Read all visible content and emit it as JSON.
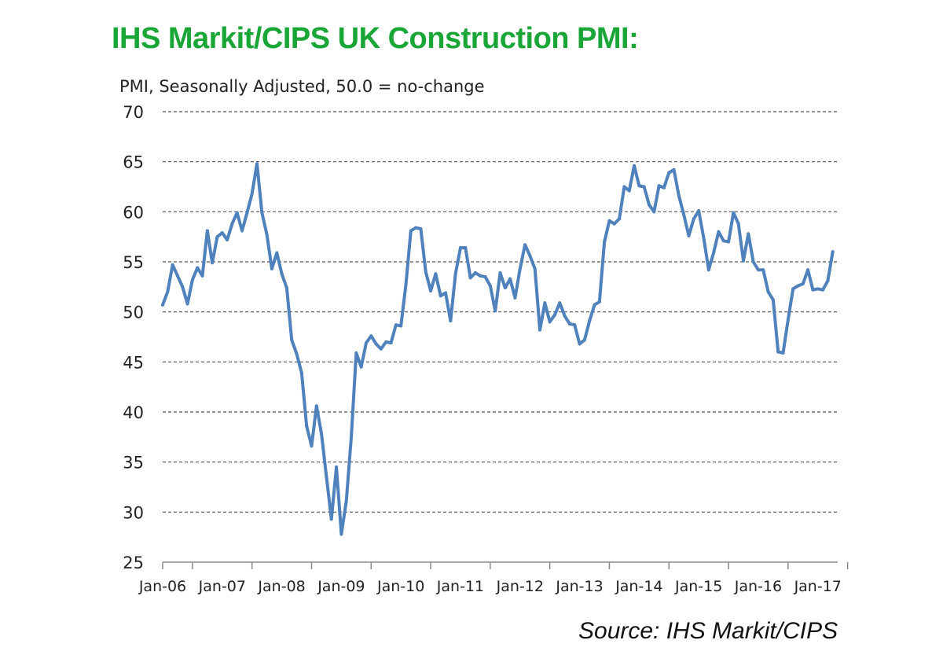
{
  "header": {
    "title": "IHS Markit/CIPS UK Construction PMI:",
    "subtitle": "PMI, Seasonally Adjusted, 50.0 = no-change"
  },
  "footer": {
    "source": "Source: IHS Markit/CIPS"
  },
  "colors": {
    "title": "#1aa637",
    "line": "#4f81bd",
    "grid": "#555555",
    "axis": "#888888"
  },
  "chart_data": {
    "type": "line",
    "title": "IHS Markit/CIPS UK Construction PMI:",
    "subtitle": "PMI, Seasonally Adjusted, 50.0 = no-change",
    "ylim": [
      25,
      70
    ],
    "y_ticks": [
      25,
      30,
      35,
      40,
      45,
      50,
      55,
      60,
      65,
      70
    ],
    "x_range": [
      "2006-01",
      "2017-05"
    ],
    "x_tick_labels": [
      "Jan-06",
      "Jan-07",
      "Jan-08",
      "Jan-09",
      "Jan-10",
      "Jan-11",
      "Jan-12",
      "Jan-13",
      "Jan-14",
      "Jan-15",
      "Jan-16",
      "Jan-17"
    ],
    "grid": {
      "horizontal": true,
      "style": "dashed"
    },
    "legend": "none",
    "series": [
      {
        "x": [
          "2006-01",
          "2006-02",
          "2006-03",
          "2006-04",
          "2006-05",
          "2006-06",
          "2006-07",
          "2006-08",
          "2006-09",
          "2006-10",
          "2006-11",
          "2006-12",
          "2007-01",
          "2007-02",
          "2007-03",
          "2007-04",
          "2007-05",
          "2007-06",
          "2007-07",
          "2007-08",
          "2007-09",
          "2007-10",
          "2007-11",
          "2007-12",
          "2008-01",
          "2008-02",
          "2008-03",
          "2008-04",
          "2008-05",
          "2008-06",
          "2008-07",
          "2008-08",
          "2008-09",
          "2008-10",
          "2008-11",
          "2008-12",
          "2009-01",
          "2009-02",
          "2009-03",
          "2009-04",
          "2009-05",
          "2009-06",
          "2009-07",
          "2009-08",
          "2009-09",
          "2009-10",
          "2009-11",
          "2009-12",
          "2010-01",
          "2010-02",
          "2010-03",
          "2010-04",
          "2010-05",
          "2010-06",
          "2010-07",
          "2010-08",
          "2010-09",
          "2010-10",
          "2010-11",
          "2010-12",
          "2011-01",
          "2011-02",
          "2011-03",
          "2011-04",
          "2011-05",
          "2011-06",
          "2011-07",
          "2011-08",
          "2011-09",
          "2011-10",
          "2011-11",
          "2011-12",
          "2012-01",
          "2012-02",
          "2012-03",
          "2012-04",
          "2012-05",
          "2012-06",
          "2012-07",
          "2012-08",
          "2012-09",
          "2012-10",
          "2012-11",
          "2012-12",
          "2013-01",
          "2013-02",
          "2013-03",
          "2013-04",
          "2013-05",
          "2013-06",
          "2013-07",
          "2013-08",
          "2013-09",
          "2013-10",
          "2013-11",
          "2013-12",
          "2014-01",
          "2014-02",
          "2014-03",
          "2014-04",
          "2014-05",
          "2014-06",
          "2014-07",
          "2014-08",
          "2014-09",
          "2014-10",
          "2014-11",
          "2014-12",
          "2015-01",
          "2015-02",
          "2015-03",
          "2015-04",
          "2015-05",
          "2015-06",
          "2015-07",
          "2015-08",
          "2015-09",
          "2015-10",
          "2015-11",
          "2015-12",
          "2016-01",
          "2016-02",
          "2016-03",
          "2016-04",
          "2016-05",
          "2016-06",
          "2016-07",
          "2016-08",
          "2016-09",
          "2016-10",
          "2016-11",
          "2016-12",
          "2017-01",
          "2017-02",
          "2017-03",
          "2017-04"
        ],
        "values": [
          50.7,
          52.0,
          54.7,
          53.6,
          52.5,
          50.8,
          53.2,
          54.4,
          53.6,
          58.1,
          54.9,
          57.5,
          57.9,
          57.2,
          58.8,
          59.9,
          58.1,
          59.9,
          61.8,
          64.8,
          59.9,
          57.7,
          54.3,
          55.9,
          53.8,
          52.4,
          47.2,
          45.8,
          43.9,
          38.6,
          36.6,
          40.6,
          37.8,
          33.5,
          29.3,
          34.5,
          27.8,
          31.1,
          37.5,
          45.9,
          44.5,
          46.9,
          47.6,
          46.8,
          46.3,
          47.0,
          46.9,
          48.7,
          48.6,
          52.7,
          58.1,
          58.4,
          58.3,
          54.0,
          52.1,
          53.8,
          51.6,
          51.9,
          49.1,
          53.8,
          56.4,
          56.4,
          53.4,
          53.9,
          53.6,
          53.5,
          52.6,
          50.1,
          53.9,
          52.4,
          53.3,
          51.4,
          54.3,
          56.7,
          55.6,
          54.3,
          48.2,
          50.9,
          49.0,
          49.7,
          50.9,
          49.6,
          48.8,
          48.7,
          46.8,
          47.2,
          49.1,
          50.7,
          51.0,
          57.0,
          59.1,
          58.8,
          59.3,
          62.5,
          62.1,
          64.6,
          62.6,
          62.5,
          60.7,
          60.0,
          62.6,
          62.4,
          63.9,
          64.2,
          61.6,
          59.7,
          57.6,
          59.3,
          60.1,
          57.4,
          54.2,
          55.9,
          58.0,
          57.1,
          57.0,
          59.9,
          58.8,
          55.1,
          57.8,
          55.0,
          54.2,
          54.2,
          52.0,
          51.2,
          46.0,
          45.9,
          49.2,
          52.3,
          52.6,
          52.8,
          54.2,
          52.2,
          52.3,
          52.2,
          53.1,
          56.0
        ]
      }
    ]
  }
}
